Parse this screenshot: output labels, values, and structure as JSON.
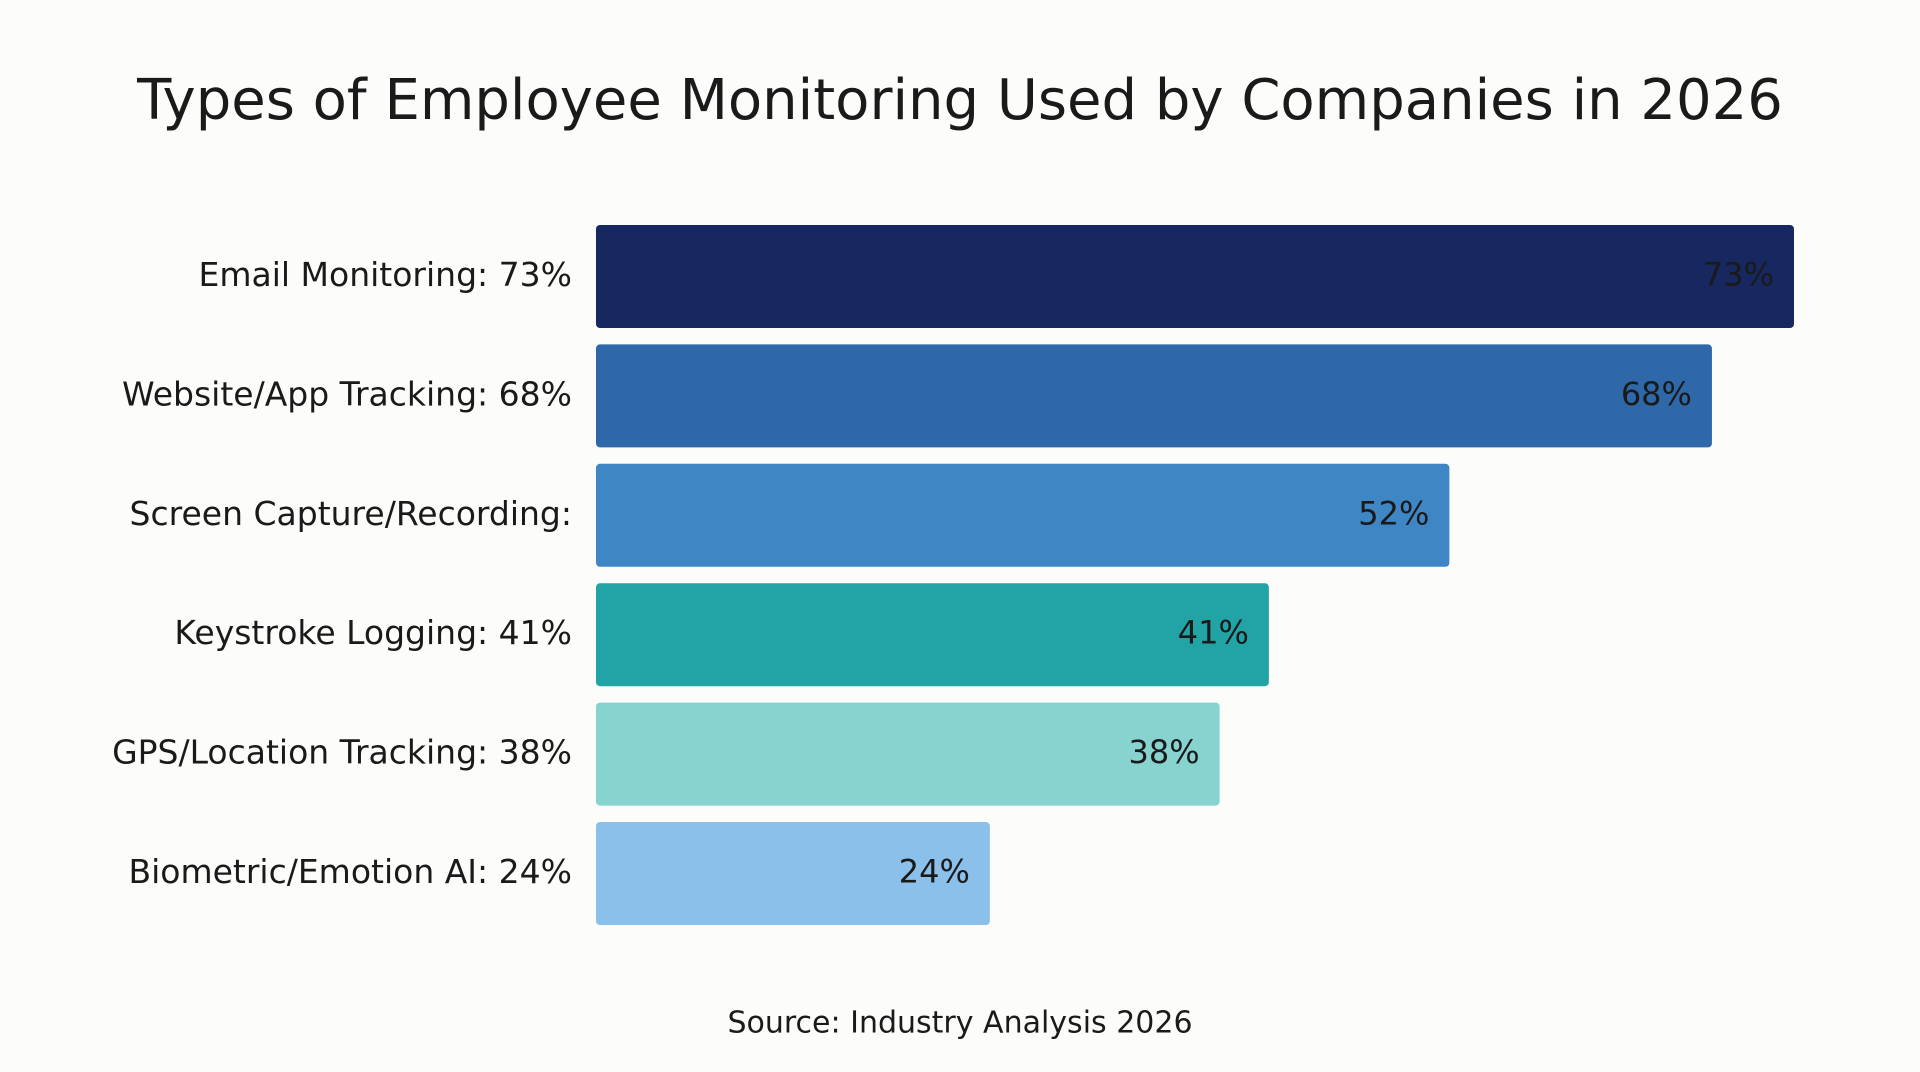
{
  "chart_data": {
    "type": "bar",
    "orientation": "horizontal",
    "title": "Types of Employee Monitoring Used by Companies in 2026",
    "categories": [
      "Email Monitoring: 73%",
      "Website/App Tracking: 68%",
      "Screen Capture/Recording:",
      "Keystroke Logging: 41%",
      "GPS/Location Tracking: 38%",
      "Biometric/Emotion AI: 24%"
    ],
    "values": [
      73,
      68,
      52,
      41,
      38,
      24
    ],
    "value_labels": [
      "73%",
      "68%",
      "52%",
      "41%",
      "38%",
      "24%"
    ],
    "colors": [
      "#16285f",
      "#2e68a8",
      "#3f86c4",
      "#22a3a6",
      "#86d3cf",
      "#8bc0ea"
    ],
    "source": "Source: Industry Analysis 2026"
  }
}
